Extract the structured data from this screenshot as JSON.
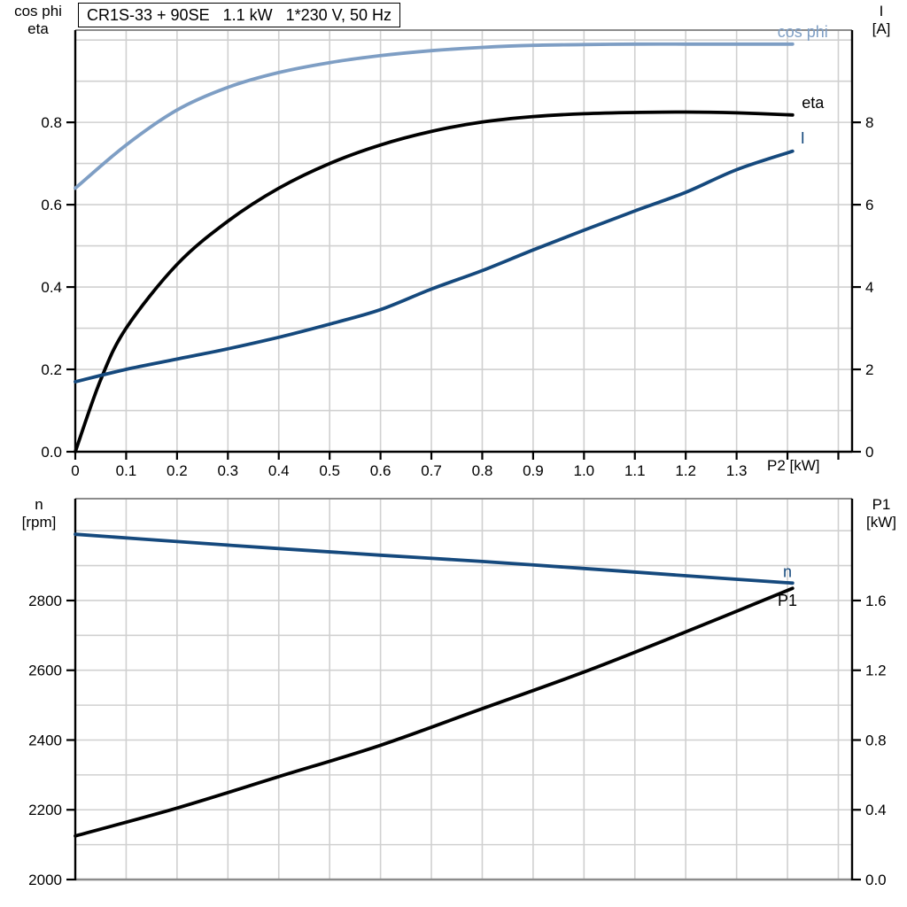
{
  "title_box": {
    "text": "CR1S-33 + 90SE   1.1 kW   1*230 V, 50 Hz"
  },
  "colors": {
    "cos_phi_blue": "#7E9EC4",
    "dark_blue": "#15497D",
    "black": "#000000",
    "grid": "#D0D0D0",
    "axis": "#000000",
    "frame_gray": "#8C8C8C",
    "background": "#FFFFFF"
  },
  "chart_data": [
    {
      "id": "top",
      "type": "line",
      "title": "CR1S-33 + 90SE   1.1 kW   1*230 V, 50 Hz",
      "xlabel": "P2 [kW]",
      "x_axis": {
        "label": "P2 [kW]",
        "range": [
          0,
          1.527
        ],
        "grid_step": 0.1,
        "tick_values": [
          0,
          0.1,
          0.2,
          0.3,
          0.4,
          0.5,
          0.6,
          0.7,
          0.8,
          0.9,
          1.0,
          1.1,
          1.2,
          1.3,
          1.4,
          1.5
        ],
        "tick_labels": [
          "0",
          "0.1",
          "0.2",
          "0.3",
          "0.4",
          "0.5",
          "0.6",
          "0.7",
          "0.8",
          "0.9",
          "1.0",
          "1.1",
          "1.2",
          "1.3",
          "",
          ""
        ],
        "show_tick_marks": true
      },
      "left_axis": {
        "title_lines": [
          "cos phi",
          "eta"
        ],
        "range": [
          0,
          1.024
        ],
        "grid_step": 0.1,
        "tick_values": [
          0,
          0.2,
          0.4,
          0.6,
          0.8
        ],
        "tick_labels": [
          "0.0",
          "0.2",
          "0.4",
          "0.6",
          "0.8"
        ]
      },
      "right_axis": {
        "title_lines": [
          "I",
          "[A]"
        ],
        "range": [
          0,
          10.24
        ],
        "tick_values": [
          0,
          2,
          4,
          6,
          8
        ],
        "tick_labels": [
          "0",
          "2",
          "4",
          "6",
          "8"
        ]
      },
      "frame": {
        "top": "frame_gray",
        "bottom": "axis"
      },
      "series": [
        {
          "name": "cos phi",
          "axis": "left",
          "color_key": "cos_phi_blue",
          "width": 3.8,
          "x": [
            0,
            0.1,
            0.2,
            0.3,
            0.4,
            0.5,
            0.6,
            0.7,
            0.8,
            0.9,
            1.0,
            1.1,
            1.2,
            1.3,
            1.41
          ],
          "values": [
            0.64,
            0.745,
            0.83,
            0.885,
            0.921,
            0.945,
            0.962,
            0.974,
            0.982,
            0.987,
            0.989,
            0.99,
            0.99,
            0.99,
            0.99
          ]
        },
        {
          "name": "eta",
          "axis": "left",
          "color_key": "black",
          "width": 3.8,
          "x": [
            0,
            0.05,
            0.1,
            0.2,
            0.3,
            0.4,
            0.5,
            0.6,
            0.7,
            0.8,
            0.9,
            1.0,
            1.1,
            1.2,
            1.3,
            1.41
          ],
          "values": [
            0.0,
            0.175,
            0.3,
            0.455,
            0.56,
            0.64,
            0.7,
            0.745,
            0.778,
            0.801,
            0.814,
            0.821,
            0.824,
            0.825,
            0.823,
            0.818
          ]
        },
        {
          "name": "I",
          "axis": "right",
          "color_key": "dark_blue",
          "width": 3.8,
          "x": [
            0,
            0.1,
            0.2,
            0.3,
            0.4,
            0.5,
            0.6,
            0.7,
            0.8,
            0.9,
            1.0,
            1.1,
            1.2,
            1.3,
            1.41
          ],
          "values": [
            1.7,
            2.0,
            2.25,
            2.5,
            2.78,
            3.1,
            3.45,
            3.95,
            4.4,
            4.9,
            5.38,
            5.85,
            6.3,
            6.85,
            7.3
          ]
        }
      ],
      "annotations": [
        {
          "text": "cos phi",
          "x": 1.43,
          "y": 1.02,
          "axis": "left",
          "color_key": "cos_phi_blue"
        },
        {
          "text": "eta",
          "x": 1.45,
          "y": 0.848,
          "axis": "left",
          "color_key": "black"
        },
        {
          "text": "I",
          "x": 1.43,
          "y": 0.762,
          "axis": "left",
          "color_key": "dark_blue"
        }
      ]
    },
    {
      "id": "bottom",
      "type": "line",
      "title": "",
      "xlabel": "",
      "x_axis": {
        "label": "",
        "range": [
          0,
          1.527
        ],
        "grid_step": 0.1,
        "tick_values": [],
        "tick_labels": [],
        "show_tick_marks": false
      },
      "left_axis": {
        "title_lines": [
          "n",
          "[rpm]"
        ],
        "range": [
          2000,
          3092
        ],
        "grid_step": 100,
        "tick_values": [
          2000,
          2200,
          2400,
          2600,
          2800
        ],
        "tick_labels": [
          "2000",
          "2200",
          "2400",
          "2600",
          "2800"
        ]
      },
      "right_axis": {
        "title_lines": [
          "P1",
          "[kW]"
        ],
        "range": [
          0,
          2.184
        ],
        "tick_values": [
          0,
          0.4,
          0.8,
          1.2,
          1.6
        ],
        "tick_labels": [
          "0.0",
          "0.4",
          "0.8",
          "1.2",
          "1.6"
        ]
      },
      "frame": {
        "top": "frame_gray",
        "bottom": "frame_gray"
      },
      "series": [
        {
          "name": "n",
          "axis": "left",
          "color_key": "dark_blue",
          "width": 3.8,
          "x": [
            0,
            0.2,
            0.4,
            0.6,
            0.8,
            1.0,
            1.2,
            1.41
          ],
          "values": [
            2990,
            2969,
            2949,
            2930,
            2912,
            2892,
            2871,
            2850
          ]
        },
        {
          "name": "P1",
          "axis": "right",
          "color_key": "black",
          "width": 3.8,
          "x": [
            0,
            0.2,
            0.4,
            0.6,
            0.8,
            1.0,
            1.2,
            1.41
          ],
          "values": [
            0.25,
            0.41,
            0.59,
            0.77,
            0.98,
            1.19,
            1.42,
            1.67
          ]
        }
      ],
      "annotations": [
        {
          "text": "n",
          "x": 1.4,
          "y": 2882,
          "axis": "left",
          "color_key": "dark_blue"
        },
        {
          "text": "P1",
          "x": 1.4,
          "y": 1.6,
          "axis": "right",
          "color_key": "black"
        }
      ]
    }
  ]
}
